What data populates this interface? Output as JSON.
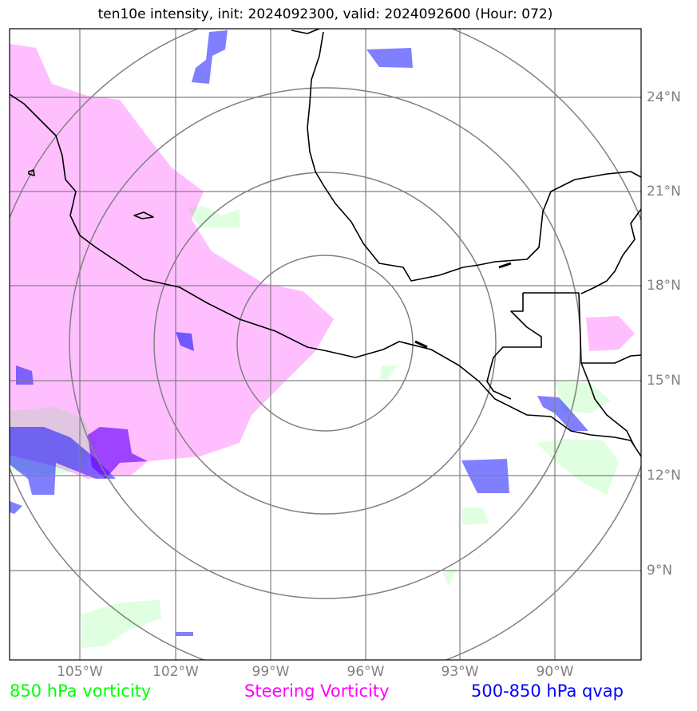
{
  "title": "ten10e intensity, init: 2024092300, valid: 2024092600 (Hour: 072)",
  "latitude_labels": [
    "24°N",
    "21°N",
    "18°N",
    "15°N",
    "12°N",
    "9°N"
  ],
  "longitude_labels": [
    "105°W",
    "102°W",
    "99°W",
    "96°W",
    "93°W",
    "90°W"
  ],
  "legend": {
    "vorticity_850": "850 hPa vorticity",
    "steering_vorticity": "Steering Vorticity",
    "qvap": "500-850 hPa qvap"
  },
  "colors": {
    "vorticity_850": "#00ff00",
    "steering_vorticity": "#ff00ff",
    "qvap": "#0000ff",
    "grid": "#808080",
    "coast": "#000000"
  },
  "range_rings_count": 4
}
